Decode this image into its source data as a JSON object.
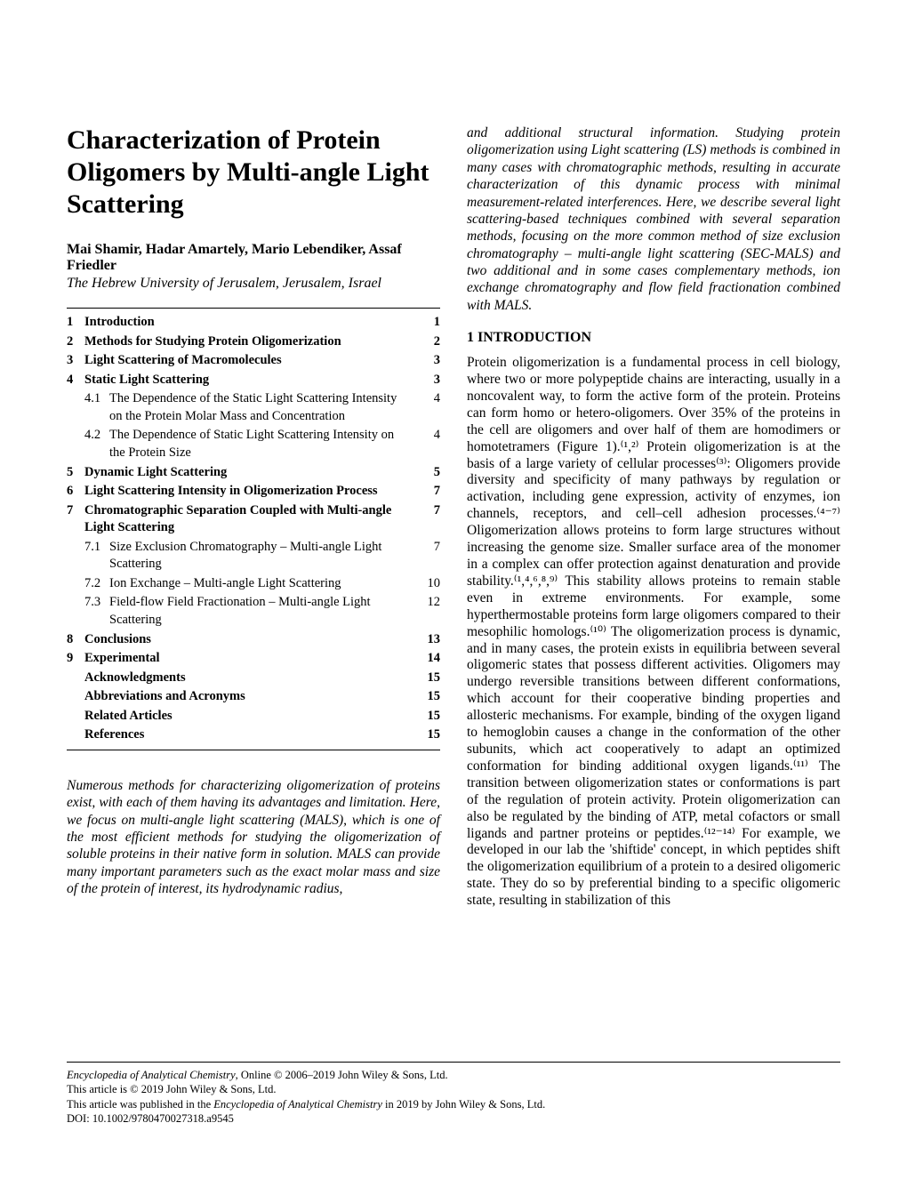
{
  "title": "Characterization of Protein Oligomers by Multi-angle Light Scattering",
  "authors": "Mai Shamir, Hadar Amartely, Mario Lebendiker, Assaf Friedler",
  "affiliation": "The Hebrew University of Jerusalem, Jerusalem, Israel",
  "toc": [
    {
      "n": "1",
      "label": "Introduction",
      "page": "1",
      "bold": true
    },
    {
      "n": "2",
      "label": "Methods for Studying Protein Oligomerization",
      "page": "2",
      "bold": true
    },
    {
      "n": "3",
      "label": "Light Scattering of Macromolecules",
      "page": "3",
      "bold": true
    },
    {
      "n": "4",
      "label": "Static Light Scattering",
      "page": "3",
      "bold": true
    },
    {
      "n": "",
      "sub": "4.1",
      "label": "The Dependence of the Static Light Scattering Intensity on the Protein Molar Mass and Concentration",
      "page": "4"
    },
    {
      "n": "",
      "sub": "4.2",
      "label": "The Dependence of Static Light Scattering Intensity on the Protein Size",
      "page": "4"
    },
    {
      "n": "5",
      "label": "Dynamic Light Scattering",
      "page": "5",
      "bold": true
    },
    {
      "n": "6",
      "label": "Light Scattering Intensity in Oligomerization Process",
      "page": "7",
      "bold": true
    },
    {
      "n": "7",
      "label": "Chromatographic Separation Coupled with Multi-angle Light Scattering",
      "page": "7",
      "bold": true
    },
    {
      "n": "",
      "sub": "7.1",
      "label": "Size Exclusion Chromatography – Multi-angle Light Scattering",
      "page": "7"
    },
    {
      "n": "",
      "sub": "7.2",
      "label": "Ion Exchange – Multi-angle Light Scattering",
      "page": "10"
    },
    {
      "n": "",
      "sub": "7.3",
      "label": "Field-flow Field Fractionation – Multi-angle Light Scattering",
      "page": "12"
    },
    {
      "n": "8",
      "label": "Conclusions",
      "page": "13",
      "bold": true
    },
    {
      "n": "9",
      "label": "Experimental",
      "page": "14",
      "bold": true
    },
    {
      "n": "",
      "label": "Acknowledgments",
      "page": "15",
      "bold": true,
      "noNum": true
    },
    {
      "n": "",
      "label": "Abbreviations and Acronyms",
      "page": "15",
      "bold": true,
      "noNum": true
    },
    {
      "n": "",
      "label": "Related Articles",
      "page": "15",
      "bold": true,
      "noNum": true
    },
    {
      "n": "",
      "label": "References",
      "page": "15",
      "bold": true,
      "noNum": true
    }
  ],
  "abstract_col1": "Numerous methods for characterizing oligomerization of proteins exist, with each of them having its advantages and limitation. Here, we focus on multi-angle light scattering (MALS), which is one of the most efficient methods for studying the oligomerization of soluble proteins in their native form in solution. MALS can provide many important parameters such as the exact molar mass and size of the protein of interest, its hydrodynamic radius,",
  "abstract_col2": "and additional structural information. Studying protein oligomerization using Light scattering (LS) methods is combined in many cases with chromatographic methods, resulting in accurate characterization of this dynamic process with minimal measurement-related interferences. Here, we describe several light scattering-based techniques combined with several separation methods, focusing on the more common method of size exclusion chromatography – multi-angle light scattering (SEC-MALS) and two additional and in some cases complementary methods, ion exchange chromatography and flow field fractionation combined with MALS.",
  "section1_heading": "1  INTRODUCTION",
  "section1_body": "Protein oligomerization is a fundamental process in cell biology, where two or more polypeptide chains are interacting, usually in a noncovalent way, to form the active form of the protein. Proteins can form homo or hetero-oligomers. Over 35% of the proteins in the cell are oligomers and over half of them are homodimers or homotetramers (Figure 1).⁽¹,²⁾ Protein oligomerization is at the basis of a large variety of cellular processes⁽³⁾: Oligomers provide diversity and specificity of many pathways by regulation or activation, including gene expression, activity of enzymes, ion channels, receptors, and cell–cell adhesion processes.⁽⁴⁻⁷⁾ Oligomerization allows proteins to form large structures without increasing the genome size. Smaller surface area of the monomer in a complex can offer protection against denaturation and provide stability.⁽¹,⁴,⁶,⁸,⁹⁾ This stability allows proteins to remain stable even in extreme environments. For example, some hyperthermostable proteins form large oligomers compared to their mesophilic homologs.⁽¹⁰⁾ The oligomerization process is dynamic, and in many cases, the protein exists in equilibria between several oligomeric states that possess different activities. Oligomers may undergo reversible transitions between different conformations, which account for their cooperative binding properties and allosteric mechanisms. For example, binding of the oxygen ligand to hemoglobin causes a change in the conformation of the other subunits, which act cooperatively to adapt an optimized conformation for binding additional oxygen ligands.⁽¹¹⁾ The transition between oligomerization states or conformations is part of the regulation of protein activity. Protein oligomerization can also be regulated by the binding of ATP, metal cofactors or small ligands and partner proteins or peptides.⁽¹²⁻¹⁴⁾ For example, we developed in our lab the 'shiftide' concept, in which peptides shift the oligomerization equilibrium of a protein to a desired oligomeric state. They do so by preferential binding to a specific oligomeric state, resulting in stabilization of this",
  "footer": {
    "line1_a": "Encyclopedia of Analytical Chemistry",
    "line1_b": ", Online © 2006–2019 John Wiley & Sons, Ltd.",
    "line2": "This article is © 2019 John Wiley & Sons, Ltd.",
    "line3_a": "This article was published in the ",
    "line3_b": "Encyclopedia of Analytical Chemistry",
    "line3_c": " in 2019 by John Wiley & Sons, Ltd.",
    "line4": "DOI: 10.1002/9780470027318.a9545"
  }
}
